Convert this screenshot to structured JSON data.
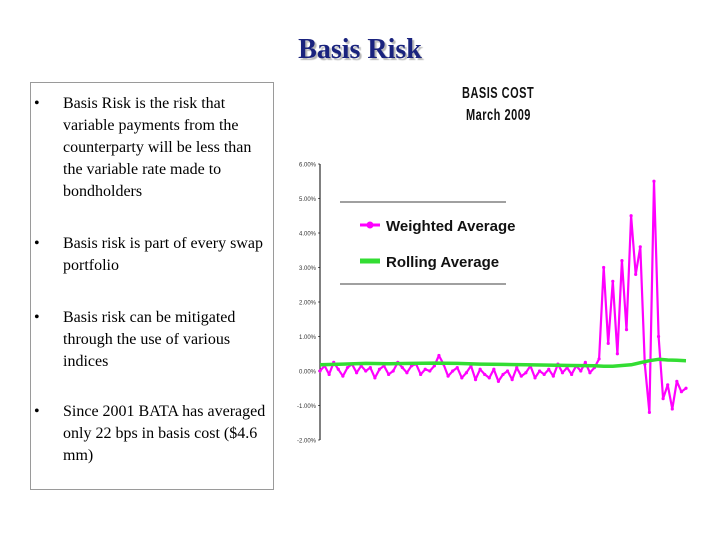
{
  "slide": {
    "title": "Basis Risk",
    "bullets": [
      "Basis Risk is the risk that variable payments from the counterparty will be less than the variable rate made to bondholders",
      "Basis risk is part of every swap portfolio",
      "Basis risk can be mitigated through the use of various indices",
      "Since 2001 BATA has averaged only 22 bps in basis cost ($4.6 mm)"
    ]
  },
  "chart_data": {
    "type": "line",
    "title": "BASIS COST",
    "subtitle": "March 2009",
    "xlabel": "",
    "ylabel": "",
    "ylim": [
      -0.02,
      0.06
    ],
    "y_ticks": [
      0.06,
      0.05,
      0.04,
      0.03,
      0.02,
      0.01,
      0.0,
      -0.01,
      -0.02
    ],
    "grid": false,
    "legend_placement": "top-left",
    "colors": {
      "weighted": "#ff00ff",
      "rolling": "#33dd33"
    },
    "series": [
      {
        "name": "Weighted Average",
        "x": [
          0,
          5,
          10,
          15,
          20,
          25,
          30,
          35,
          40,
          45,
          50,
          55,
          60,
          65,
          70,
          75,
          80,
          85,
          90,
          95,
          100,
          105,
          110,
          115,
          120,
          125,
          130,
          135,
          140,
          145,
          150,
          155,
          160,
          165,
          170,
          175,
          180,
          185,
          190,
          195,
          200,
          205,
          210,
          215,
          220,
          225,
          230,
          235,
          240,
          245,
          250,
          255,
          260,
          265,
          270,
          275,
          280,
          285,
          290,
          295,
          300,
          305,
          310,
          315,
          320,
          325,
          330,
          335,
          340,
          345,
          350,
          355,
          360,
          365,
          370,
          375,
          380,
          385,
          390,
          395,
          400
        ],
        "values": [
          0.0,
          0.0015,
          -0.001,
          0.0025,
          0.0005,
          -0.0015,
          0.001,
          0.002,
          -0.0005,
          0.0015,
          0.0,
          0.001,
          -0.002,
          0.0005,
          0.0015,
          -0.001,
          0.0,
          0.0025,
          0.001,
          -0.0005,
          0.0015,
          0.002,
          -0.001,
          0.0005,
          0.0,
          0.0015,
          0.0045,
          0.002,
          -0.0015,
          0.0,
          0.001,
          -0.002,
          -0.0005,
          0.0015,
          -0.0025,
          0.0005,
          -0.001,
          -0.002,
          0.0005,
          -0.003,
          -0.001,
          0.0,
          -0.0025,
          0.001,
          -0.0015,
          -0.0005,
          0.0015,
          -0.002,
          0.0,
          -0.001,
          0.0005,
          -0.0015,
          0.002,
          -0.0005,
          0.001,
          -0.001,
          0.0015,
          0.0,
          0.0025,
          -0.0005,
          0.001,
          0.0035,
          0.03,
          0.008,
          0.026,
          0.005,
          0.032,
          0.012,
          0.045,
          0.028,
          0.036,
          0.002,
          -0.012,
          0.055,
          0.01,
          -0.008,
          -0.004,
          -0.011,
          -0.003,
          -0.006,
          -0.005
        ]
      },
      {
        "name": "Rolling Average",
        "x": [
          0,
          25,
          50,
          75,
          100,
          125,
          150,
          175,
          200,
          225,
          250,
          275,
          300,
          310,
          320,
          330,
          340,
          350,
          360,
          370,
          380,
          390,
          400
        ],
        "values": [
          0.0018,
          0.002,
          0.0022,
          0.0021,
          0.0022,
          0.0023,
          0.0022,
          0.002,
          0.0019,
          0.0018,
          0.0017,
          0.0016,
          0.0015,
          0.0014,
          0.0014,
          0.0016,
          0.0018,
          0.0024,
          0.003,
          0.0034,
          0.0032,
          0.0031,
          0.003
        ]
      }
    ]
  }
}
